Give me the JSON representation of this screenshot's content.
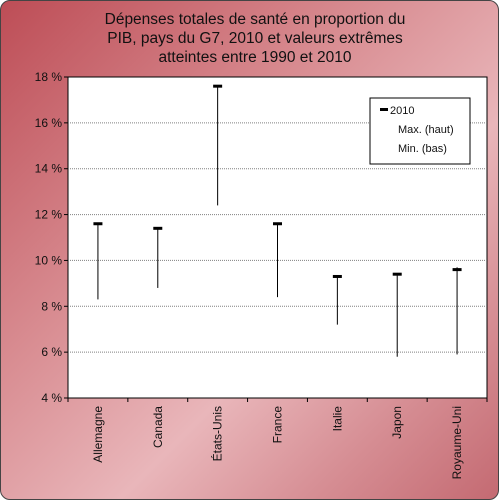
{
  "chart_data": {
    "type": "range",
    "title": "Dépenses totales de santé en proportion du PIB, pays du G7, 2010 et valeurs extrêmes atteintes entre 1990 et 2010",
    "title_lines": [
      "Dépenses totales de santé en proportion du",
      "PIB, pays du G7, 2010 et valeurs extrêmes",
      "atteintes entre 1990 et 2010"
    ],
    "categories": [
      "Allemagne",
      "Canada",
      "États-Unis",
      "France",
      "Italie",
      "Japon",
      "Royaume-Uni"
    ],
    "series": [
      {
        "name": "2010",
        "values": [
          11.6,
          11.4,
          17.6,
          11.6,
          9.3,
          9.4,
          9.6
        ]
      },
      {
        "name": "Max. (haut)",
        "values": [
          11.6,
          11.4,
          17.6,
          11.6,
          9.3,
          9.4,
          9.7
        ]
      },
      {
        "name": "Min. (bas)",
        "values": [
          8.3,
          8.8,
          12.4,
          8.4,
          7.2,
          5.8,
          5.9
        ]
      }
    ],
    "ylim": [
      4,
      18
    ],
    "yticks": [
      "4 %",
      "6 %",
      "8 %",
      "10 %",
      "12 %",
      "14 %",
      "16 %",
      "18 %"
    ],
    "ytick_values": [
      4,
      6,
      8,
      10,
      12,
      14,
      16,
      18
    ],
    "grid": true,
    "legend_position": "top-right",
    "colors": {
      "plot_background": "#ffffff",
      "line": "#000000",
      "gridline": "#808080",
      "frame_start": "#bd4d56",
      "frame_end": "#c46a72"
    }
  }
}
